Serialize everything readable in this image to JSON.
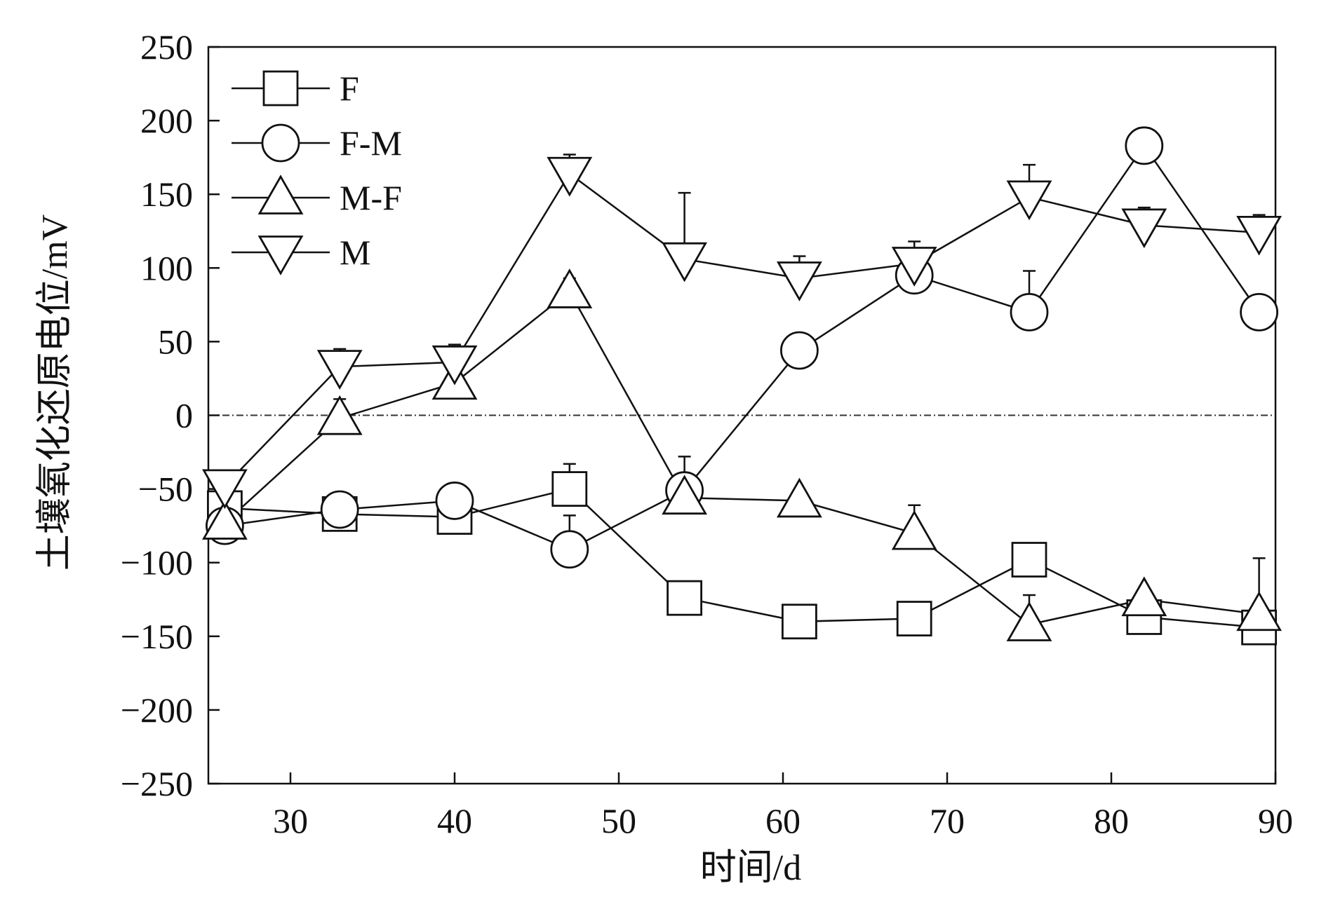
{
  "chart_data": {
    "type": "line",
    "title": "",
    "xlabel": "时间/d",
    "ylabel": "土壤氧化还原电位/mV",
    "xlim": [
      25,
      90
    ],
    "ylim": [
      -250,
      250
    ],
    "xticks": [
      30,
      40,
      50,
      60,
      70,
      80,
      90
    ],
    "yticks": [
      250,
      200,
      150,
      100,
      50,
      0,
      -50,
      -100,
      -150,
      -200,
      -250
    ],
    "x": [
      26,
      33,
      40,
      47,
      54,
      61,
      68,
      75,
      82,
      89
    ],
    "reference_line": {
      "y": 0,
      "style": "dash-dot"
    },
    "legend_position": "top-left",
    "series": [
      {
        "name": "F",
        "marker": "square",
        "values": [
          -63,
          -67,
          -69,
          -50,
          -124,
          -140,
          -138,
          -98,
          -137,
          -144
        ],
        "error": [
          0,
          0,
          0,
          17,
          0,
          0,
          5,
          8,
          0,
          0
        ]
      },
      {
        "name": "F-M",
        "marker": "circle",
        "values": [
          -75,
          -64,
          -58,
          -91,
          -51,
          44,
          95,
          70,
          183,
          70
        ],
        "error": [
          0,
          0,
          0,
          23,
          23,
          0,
          0,
          28,
          12,
          0
        ]
      },
      {
        "name": "M-F",
        "marker": "triangle-up",
        "values": [
          -73,
          -2,
          22,
          84,
          -56,
          -58,
          -80,
          -142,
          -125,
          -135
        ],
        "error": [
          0,
          13,
          0,
          9,
          0,
          0,
          19,
          20,
          0,
          38
        ]
      },
      {
        "name": "M",
        "marker": "triangle-down",
        "values": [
          -48,
          33,
          36,
          164,
          106,
          93,
          103,
          148,
          129,
          124
        ],
        "error": [
          10,
          12,
          12,
          13,
          45,
          15,
          15,
          22,
          12,
          12
        ]
      }
    ]
  }
}
